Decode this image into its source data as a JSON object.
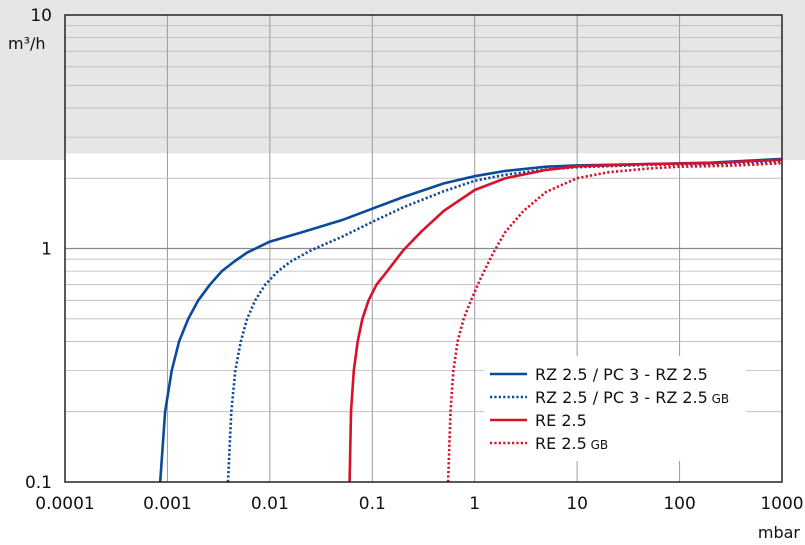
{
  "chart_data": {
    "type": "line",
    "title": "",
    "xlabel": "mbar",
    "ylabel": "m³/h",
    "x_scale": "log",
    "y_scale": "log",
    "xlim": [
      0.0001,
      1000
    ],
    "ylim": [
      0.1,
      10
    ],
    "grid": true,
    "legend_position": "bottom-right",
    "x_ticks": [
      "0.0001",
      "0.001",
      "0.01",
      "0.1",
      "1",
      "10",
      "100",
      "1000"
    ],
    "y_ticks": [
      "0.1",
      "1",
      "10"
    ],
    "background_band_color": "#e6e6e6",
    "series": [
      {
        "name": "RZ 2.5 / PC 3 - RZ 2.5",
        "suffix": "",
        "color": "#0a4a9a",
        "style": "solid",
        "points": [
          [
            0.00085,
            0.1
          ],
          [
            0.00095,
            0.2
          ],
          [
            0.0011,
            0.3
          ],
          [
            0.0013,
            0.4
          ],
          [
            0.0016,
            0.5
          ],
          [
            0.002,
            0.6
          ],
          [
            0.0026,
            0.7
          ],
          [
            0.0034,
            0.8
          ],
          [
            0.0045,
            0.88
          ],
          [
            0.006,
            0.96
          ],
          [
            0.01,
            1.07
          ],
          [
            0.02,
            1.17
          ],
          [
            0.05,
            1.32
          ],
          [
            0.1,
            1.48
          ],
          [
            0.2,
            1.66
          ],
          [
            0.5,
            1.9
          ],
          [
            1,
            2.04
          ],
          [
            2,
            2.15
          ],
          [
            5,
            2.24
          ],
          [
            10,
            2.27
          ],
          [
            50,
            2.3
          ],
          [
            200,
            2.33
          ],
          [
            1000,
            2.42
          ]
        ]
      },
      {
        "name": "RZ 2.5 / PC 3 - RZ 2.5",
        "suffix": "GB",
        "color": "#0a4a9a",
        "style": "dotted",
        "points": [
          [
            0.0039,
            0.1
          ],
          [
            0.0042,
            0.2
          ],
          [
            0.0046,
            0.3
          ],
          [
            0.0052,
            0.4
          ],
          [
            0.006,
            0.5
          ],
          [
            0.0072,
            0.6
          ],
          [
            0.009,
            0.7
          ],
          [
            0.012,
            0.8
          ],
          [
            0.016,
            0.88
          ],
          [
            0.025,
            0.98
          ],
          [
            0.05,
            1.12
          ],
          [
            0.1,
            1.3
          ],
          [
            0.2,
            1.5
          ],
          [
            0.5,
            1.76
          ],
          [
            1,
            1.95
          ],
          [
            2,
            2.07
          ],
          [
            5,
            2.18
          ],
          [
            10,
            2.23
          ],
          [
            50,
            2.28
          ],
          [
            200,
            2.3
          ],
          [
            1000,
            2.36
          ]
        ]
      },
      {
        "name": "RE 2.5",
        "suffix": "",
        "color": "#d8102a",
        "style": "solid",
        "points": [
          [
            0.06,
            0.1
          ],
          [
            0.062,
            0.2
          ],
          [
            0.066,
            0.3
          ],
          [
            0.072,
            0.4
          ],
          [
            0.08,
            0.5
          ],
          [
            0.092,
            0.6
          ],
          [
            0.11,
            0.7
          ],
          [
            0.14,
            0.8
          ],
          [
            0.2,
            0.98
          ],
          [
            0.3,
            1.18
          ],
          [
            0.5,
            1.45
          ],
          [
            1,
            1.78
          ],
          [
            2,
            2.0
          ],
          [
            5,
            2.17
          ],
          [
            10,
            2.25
          ],
          [
            50,
            2.3
          ],
          [
            200,
            2.32
          ],
          [
            1000,
            2.4
          ]
        ]
      },
      {
        "name": "RE 2.5",
        "suffix": "GB",
        "color": "#d8102a",
        "style": "dotted",
        "points": [
          [
            0.55,
            0.1
          ],
          [
            0.58,
            0.2
          ],
          [
            0.62,
            0.3
          ],
          [
            0.68,
            0.4
          ],
          [
            0.78,
            0.5
          ],
          [
            0.92,
            0.6
          ],
          [
            1.15,
            0.75
          ],
          [
            1.5,
            0.95
          ],
          [
            2,
            1.18
          ],
          [
            3,
            1.45
          ],
          [
            5,
            1.75
          ],
          [
            10,
            2.0
          ],
          [
            20,
            2.12
          ],
          [
            50,
            2.2
          ],
          [
            100,
            2.24
          ],
          [
            300,
            2.26
          ],
          [
            1000,
            2.32
          ]
        ]
      }
    ]
  }
}
